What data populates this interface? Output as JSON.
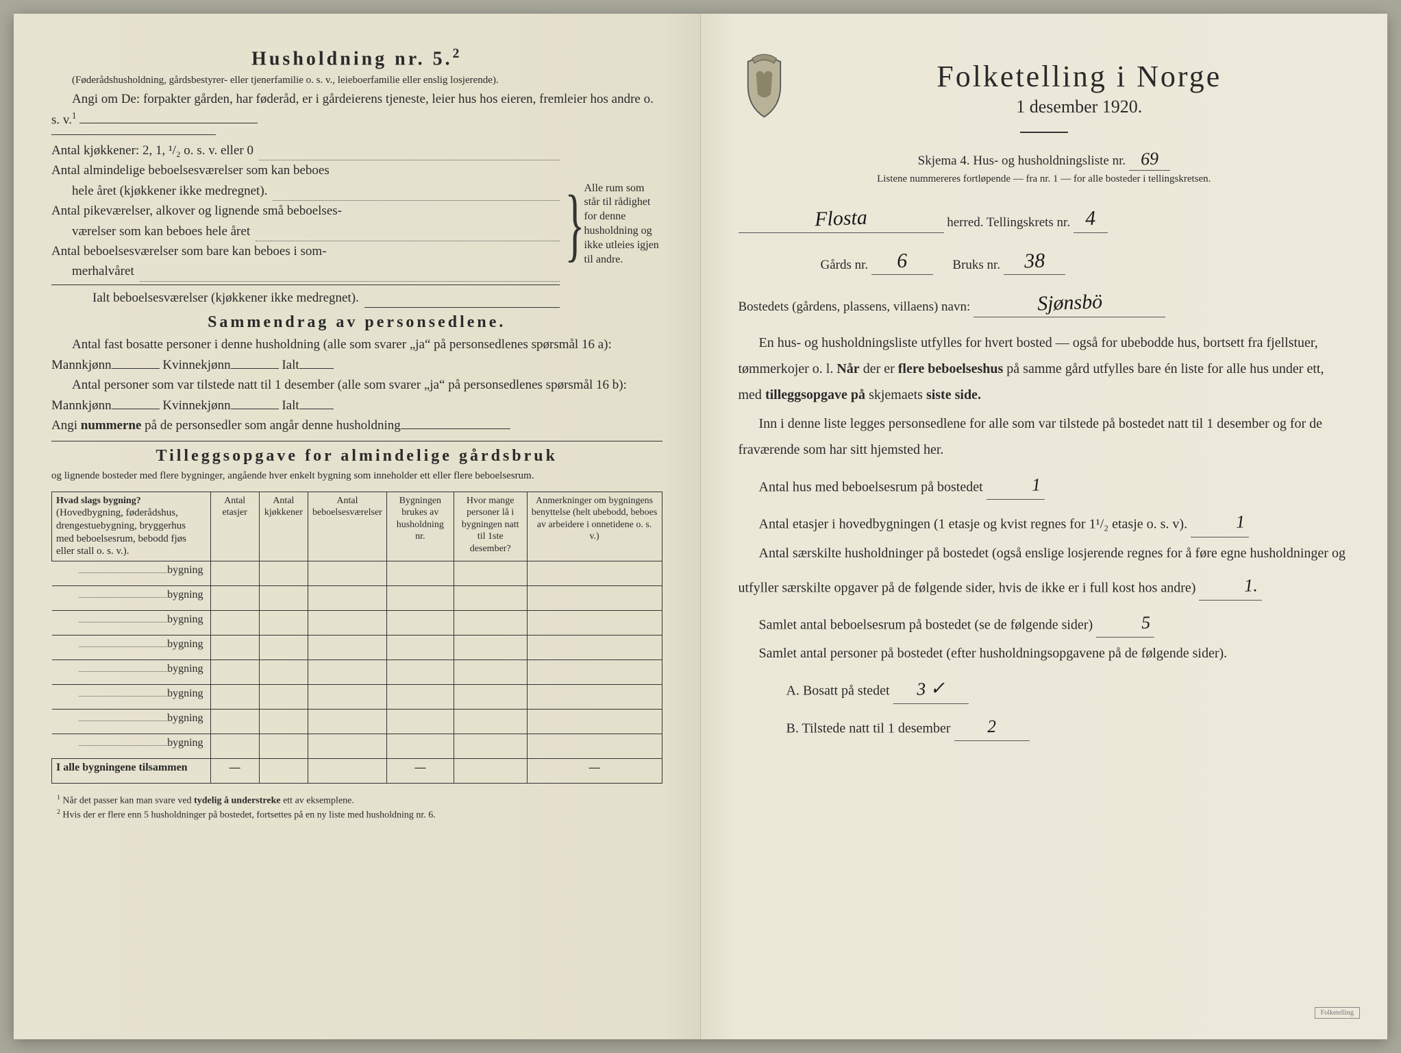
{
  "colors": {
    "paper": "#e8e5d4",
    "ink": "#2a2a2a",
    "handwriting": "#1a1a1a",
    "border": "#333333"
  },
  "left": {
    "title": "Husholdning nr. 5.",
    "title_sup": "2",
    "intro1": "(Føderådshusholdning, gårdsbestyrer- eller tjenerfamilie o. s. v., leieboerfamilie eller enslig losjerende).",
    "intro2_a": "Angi om De: forpakter gården, har føderåd, er i gårdeierens tjeneste, leier hus hos eieren, fremleier hos andre o. s. v.",
    "intro2_sup": "1",
    "rooms": {
      "l1": "Antal kjøkkener: 2, 1, ¹/₂ o. s. v. eller 0",
      "l2a": "Antal almindelige beboelsesværelser som kan beboes",
      "l2b": "hele året (kjøkkener ikke medregnet).",
      "l3a": "Antal pikeværelser, alkover og lignende små beboelses-",
      "l3b": "værelser som kan beboes hele året",
      "l4a": "Antal beboelsesværelser som bare kan beboes i som-",
      "l4b": "merhalvåret",
      "sum": "Ialt beboelsesværelser (kjøkkener ikke medregnet).",
      "brace_note": "Alle rum som står til rådighet for denne husholdning og ikke utleies igjen til andre."
    },
    "summary": {
      "title": "Sammendrag av personsedlene.",
      "l1": "Antal fast bosatte personer i denne husholdning (alle som svarer „ja“ på personsedlenes spørsmål 16 a): Mannkjønn",
      "kv": "Kvinnekjønn",
      "ialt": "Ialt",
      "l2": "Antal personer som var tilstede natt til 1 desember (alle som svarer „ja“ på personsedlenes spørsmål 16 b): Mannkjønn",
      "l3": "Angi nummerne på de personsedler som angår denne husholdning"
    },
    "tillegg": {
      "title": "Tilleggsopgave for almindelige gårdsbruk",
      "sub": "og lignende bosteder med flere bygninger, angående hver enkelt bygning som inneholder ett eller flere beboelsesrum."
    },
    "table": {
      "headers": [
        "Hvad slags bygning?\n(Hovedbygning, føderådshus, drengestuebygning, bryggerhus med beboelsesrum, bebodd fjøs eller stall o. s. v.).",
        "Antal etasjer",
        "Antal kjøkkener",
        "Antal beboelsesværelser",
        "Bygningen brukes av husholdning nr.",
        "Hvor mange personer lå i bygningen natt til 1ste desember?",
        "Anmerkninger om bygningens benyttelse (helt ubebodd, beboes av arbeidere i onnetidene o. s. v.)"
      ],
      "rowlabel": "bygning",
      "rows": 8,
      "totals_label": "I alle bygningene tilsammen",
      "dash": "—"
    },
    "footnotes": {
      "f1": "Når det passer kan man svare ved tydelig å understreke ett av eksemplene.",
      "f2": "Hvis der er flere enn 5 husholdninger på bostedet, fortsettes på en ny liste med husholdning nr. 6."
    }
  },
  "right": {
    "title": "Folketelling i Norge",
    "date": "1 desember 1920.",
    "skjema": "Skjema 4.  Hus- og husholdningsliste nr.",
    "skjema_val": "69",
    "listnote": "Listene nummereres fortløpende — fra nr. 1 — for alle bosteder i tellingskretsen.",
    "herred_val": "Flosta",
    "herred_lbl": "herred.  Tellingskrets nr.",
    "krets_val": "4",
    "gard_lbl": "Gårds nr.",
    "gard_val": "6",
    "bruk_lbl": "Bruks nr.",
    "bruk_val": "38",
    "bosted_lbl": "Bostedets (gårdens, plassens, villaens) navn:",
    "bosted_val": "Sjønsbö",
    "para1": "En hus- og husholdningsliste utfylles for hvert bosted — også for ubebodde hus, bortsett fra fjellstuer, tømmerkojer o. l.  Når der er flere beboelseshus på samme gård utfylles bare én liste for alle hus under ett, med tilleggsopgave på skjemaets siste side.",
    "para2": "Inn i denne liste legges personsedlene for alle som var tilstede på bostedet natt til 1 desember og for de fraværende som har sitt hjemsted her.",
    "q1": "Antal hus med beboelsesrum på bostedet",
    "q1_val": "1",
    "q2": "Antal etasjer i hovedbygningen (1 etasje og kvist regnes for 1¹/₂ etasje o. s. v).",
    "q2_val": "1",
    "q3": "Antal særskilte husholdninger på bostedet (også enslige losjerende regnes for å føre egne husholdninger og utfyller særskilte opgaver på de følgende sider, hvis de ikke er i full kost hos andre)",
    "q3_val": "1.",
    "q4": "Samlet antal beboelsesrum på bostedet (se de følgende sider)",
    "q4_val": "5",
    "q5": "Samlet antal personer på bostedet (efter husholdningsopgavene på de følgende sider).",
    "qA": "A.  Bosatt på stedet",
    "qA_val": "3 ✓",
    "qB": "B.  Tilstede natt til 1 desember",
    "qB_val": "2",
    "stamp": "Folketelling"
  }
}
